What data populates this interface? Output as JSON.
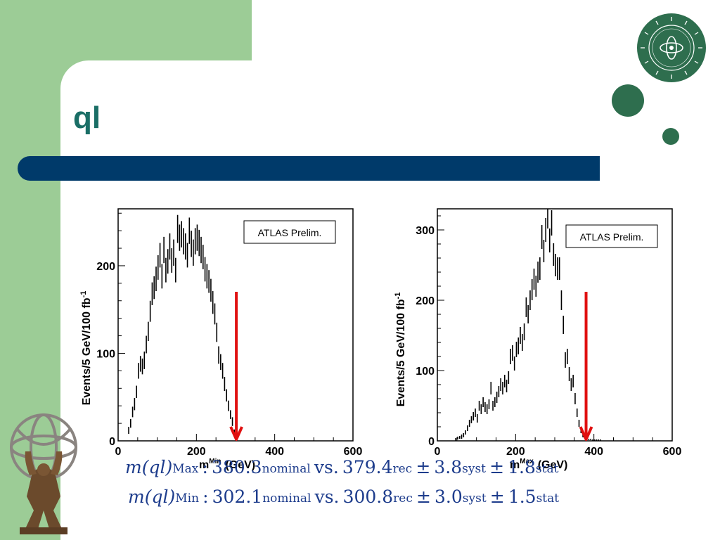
{
  "slide": {
    "title": "ql",
    "colors": {
      "title": "#1a6e66",
      "band": "#9ccc96",
      "bar": "#003a6a",
      "dots": "#2e6e4e",
      "arrow": "#e01010",
      "formula": "#1d3c8c"
    },
    "seal_icon": "university-seal-icon",
    "logo_icon": "atlas-figure-icon"
  },
  "chart_data": [
    {
      "type": "scatter",
      "title": "",
      "legend_text": "ATLAS Prelim.",
      "legend_placement": "top-right",
      "xlabel_main": "m",
      "xlabel_sup": "Min",
      "xlabel_unit": "(GeV)",
      "ylabel": "Events/5 GeV/100 fb",
      "ylabel_sup": "-1",
      "xlim": [
        0,
        600
      ],
      "ylim": [
        0,
        265
      ],
      "xticks": [
        0,
        200,
        400,
        600
      ],
      "yticks": [
        0,
        100,
        200
      ],
      "marker_x": 302,
      "x": [
        27,
        32,
        37,
        42,
        47,
        52,
        57,
        62,
        67,
        72,
        77,
        82,
        87,
        92,
        97,
        102,
        107,
        112,
        117,
        122,
        127,
        132,
        137,
        142,
        147,
        152,
        157,
        162,
        167,
        172,
        177,
        182,
        187,
        192,
        197,
        202,
        207,
        212,
        217,
        222,
        227,
        232,
        237,
        242,
        247,
        252,
        257,
        262,
        267,
        272,
        277,
        282,
        287,
        292,
        297,
        302
      ],
      "y": [
        12,
        20,
        33,
        42,
        56,
        80,
        88,
        85,
        92,
        110,
        125,
        148,
        168,
        175,
        185,
        198,
        212,
        188,
        218,
        195,
        205,
        222,
        206,
        215,
        195,
        242,
        232,
        236,
        228,
        222,
        212,
        240,
        225,
        215,
        228,
        232,
        226,
        218,
        210,
        196,
        188,
        182,
        172,
        158,
        145,
        124,
        98,
        90,
        80,
        65,
        52,
        40,
        30,
        22,
        10,
        3
      ],
      "errors": [
        4,
        5,
        6,
        7,
        7,
        9,
        9,
        9,
        10,
        10,
        11,
        12,
        13,
        13,
        14,
        14,
        14,
        14,
        15,
        14,
        14,
        15,
        14,
        15,
        14,
        16,
        15,
        15,
        15,
        15,
        14,
        15,
        15,
        15,
        15,
        15,
        15,
        15,
        14,
        14,
        14,
        13,
        13,
        13,
        12,
        11,
        10,
        9,
        9,
        8,
        7,
        6,
        5,
        5,
        3,
        2
      ]
    },
    {
      "type": "scatter",
      "title": "",
      "legend_text": "ATLAS Prelim.",
      "legend_placement": "top-right",
      "xlabel_main": "m",
      "xlabel_sup": "Max",
      "xlabel_unit": "(GeV)",
      "ylabel": "Events/5 GeV/100 fb",
      "ylabel_sup": "-1",
      "xlim": [
        0,
        600
      ],
      "ylim": [
        0,
        330
      ],
      "xticks": [
        0,
        200,
        400,
        600
      ],
      "yticks": [
        0,
        100,
        200,
        300
      ],
      "marker_x": 380,
      "x": [
        47,
        52,
        57,
        62,
        67,
        72,
        77,
        82,
        87,
        92,
        97,
        102,
        107,
        112,
        117,
        122,
        127,
        132,
        137,
        142,
        147,
        152,
        157,
        162,
        167,
        172,
        177,
        182,
        187,
        192,
        197,
        202,
        207,
        212,
        217,
        222,
        227,
        232,
        237,
        242,
        247,
        252,
        257,
        262,
        267,
        272,
        277,
        282,
        287,
        292,
        297,
        302,
        307,
        312,
        317,
        322,
        327,
        332,
        337,
        342,
        347,
        352,
        357,
        362,
        367,
        372,
        377,
        382,
        387,
        392,
        397,
        402,
        407,
        412,
        417
      ],
      "y": [
        2,
        4,
        5,
        6,
        8,
        12,
        18,
        25,
        30,
        35,
        40,
        32,
        50,
        45,
        55,
        48,
        45,
        52,
        75,
        50,
        55,
        62,
        70,
        80,
        75,
        85,
        78,
        90,
        120,
        125,
        110,
        130,
        135,
        150,
        140,
        155,
        190,
        180,
        200,
        215,
        230,
        220,
        240,
        245,
        290,
        270,
        300,
        320,
        285,
        310,
        265,
        250,
        245,
        245,
        200,
        165,
        115,
        120,
        95,
        80,
        85,
        60,
        40,
        25,
        15,
        8,
        5,
        3,
        2,
        2,
        1,
        1,
        1,
        1,
        1
      ],
      "errors": [
        2,
        2,
        2,
        3,
        3,
        3,
        4,
        5,
        5,
        6,
        6,
        6,
        7,
        7,
        7,
        7,
        7,
        7,
        9,
        7,
        7,
        8,
        8,
        9,
        9,
        9,
        9,
        9,
        11,
        11,
        10,
        11,
        12,
        12,
        12,
        12,
        14,
        13,
        14,
        15,
        15,
        15,
        15,
        16,
        17,
        16,
        17,
        18,
        17,
        18,
        16,
        16,
        16,
        16,
        14,
        13,
        11,
        11,
        10,
        9,
        9,
        8,
        6,
        5,
        4,
        3,
        2,
        2,
        1,
        1,
        1,
        1,
        1,
        1,
        1
      ]
    }
  ],
  "formulas": [
    {
      "lhs": "m(ql)",
      "lhs_sup": "Max",
      "colon": ":",
      "nominal_value": "380.3",
      "nominal_sub": "nominal",
      "vs": "vs.",
      "rec_value": "379.4",
      "rec_sub": "rec",
      "pm1": "±",
      "syst_value": "3.8",
      "syst_sub": "syst",
      "pm2": "±",
      "stat_value": "1.8",
      "stat_sub": "stat"
    },
    {
      "lhs": "m(ql)",
      "lhs_sup": "Min",
      "colon": ":",
      "nominal_value": "302.1",
      "nominal_sub": "nominal",
      "vs": "vs.",
      "rec_value": "300.8",
      "rec_sub": "rec",
      "pm1": "±",
      "syst_value": "3.0",
      "syst_sub": "syst",
      "pm2": "±",
      "stat_value": "1.5",
      "stat_sub": "stat"
    }
  ]
}
